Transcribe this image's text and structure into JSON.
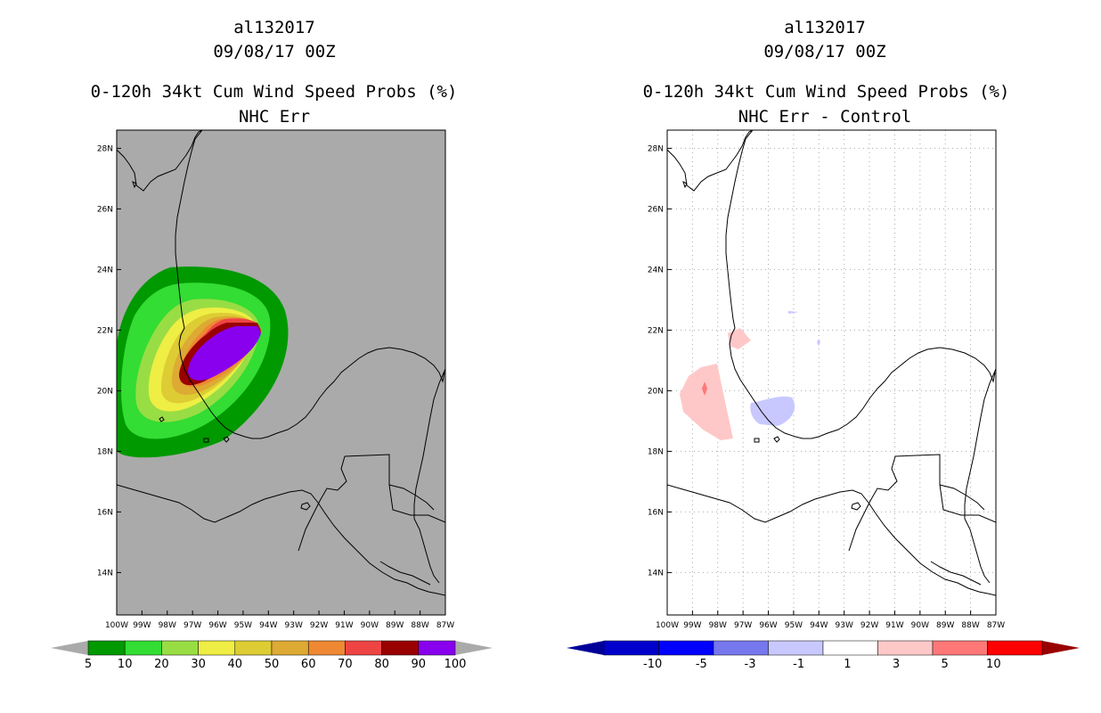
{
  "left_panel": {
    "storm_id": "al132017",
    "datetime": "09/08/17 00Z",
    "product": "0-120h 34kt Cum Wind Speed Probs (%)",
    "subtitle": "NHC Err",
    "background": "#aaaaaa",
    "colorbar": {
      "labels": [
        "5",
        "10",
        "20",
        "30",
        "40",
        "50",
        "60",
        "70",
        "80",
        "90",
        "100"
      ],
      "colors": [
        "#009900",
        "#33dd33",
        "#99dd44",
        "#eeee44",
        "#ddcc33",
        "#ddaa33",
        "#ee8833",
        "#ee4444",
        "#990000",
        "#8800ee"
      ],
      "end_arrow_color": "#aaaaaa"
    },
    "probability_levels_percent": [
      5,
      10,
      20,
      30,
      40,
      50,
      60,
      70,
      80,
      90
    ]
  },
  "right_panel": {
    "storm_id": "al132017",
    "datetime": "09/08/17 00Z",
    "product": "0-120h 34kt Cum Wind Speed Probs (%)",
    "subtitle": "NHC Err - Control",
    "background": "#ffffff",
    "colorbar": {
      "labels": [
        "-10",
        "-5",
        "-3",
        "-1",
        "1",
        "3",
        "5",
        "10"
      ],
      "colors": [
        "#0000cc",
        "#0000ff",
        "#7777ee",
        "#c8c8ff",
        "#ffffff",
        "#ffc8c8",
        "#ff7777",
        "#ff0000"
      ],
      "low_arrow_color": "#000099",
      "high_arrow_color": "#990000"
    }
  },
  "axes": {
    "lon_labels": [
      "100W",
      "99W",
      "98W",
      "97W",
      "96W",
      "95W",
      "94W",
      "93W",
      "92W",
      "91W",
      "90W",
      "89W",
      "88W",
      "87W"
    ],
    "lon_values": [
      -100,
      -99,
      -98,
      -97,
      -96,
      -95,
      -94,
      -93,
      -92,
      -91,
      -90,
      -89,
      -88,
      -87
    ],
    "lat_labels": [
      "14N",
      "16N",
      "18N",
      "20N",
      "22N",
      "24N",
      "26N",
      "28N"
    ],
    "lat_values": [
      14,
      16,
      18,
      20,
      22,
      24,
      26,
      28
    ],
    "lon_range": [
      -100,
      -87
    ],
    "lat_range": [
      12.6,
      28.6
    ]
  }
}
